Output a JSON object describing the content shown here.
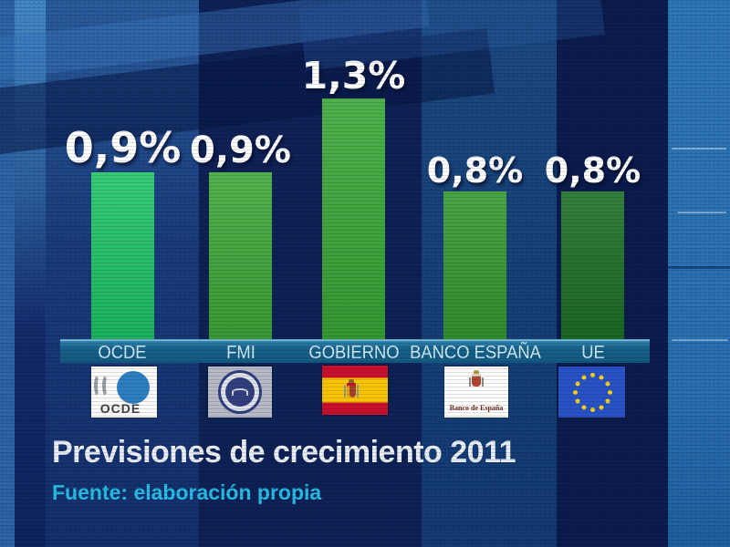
{
  "chart_data": {
    "type": "bar",
    "title": "Previsiones de crecimiento 2011",
    "source": "Fuente: elaboración propia",
    "categories": [
      "OCDE",
      "FMI",
      "GOBIERNO",
      "BANCO ESPAÑA",
      "UE"
    ],
    "values": [
      0.9,
      0.9,
      1.3,
      0.8,
      0.8
    ],
    "value_labels": [
      "0,9%",
      "0,9%",
      "1,3%",
      "0,8%",
      "0,8%"
    ],
    "bar_colors": [
      "#1fc567",
      "#3fa93a",
      "#3ba838",
      "#359a2f",
      "#1e7027"
    ],
    "unit": "percent",
    "ylim": [
      0,
      1.55
    ],
    "grid": false,
    "legend": "none"
  },
  "logos": [
    {
      "name": "ocde-logo",
      "text": "OCDE"
    },
    {
      "name": "fmi-logo",
      "text": ""
    },
    {
      "name": "spain-flag",
      "text": ""
    },
    {
      "name": "banco-espana-logo",
      "text": "Banco de España"
    },
    {
      "name": "eu-flag",
      "stars": 12,
      "text": ""
    }
  ],
  "colors": {
    "background": "#0e2257",
    "band": "#176189",
    "band_text": "#cde8f3",
    "title_text": "#e9edf4",
    "source_text": "#25bde6",
    "value_text": "#ffffff",
    "eu_flag_blue": "#2853c6",
    "eu_star_yellow": "#f7d117"
  }
}
